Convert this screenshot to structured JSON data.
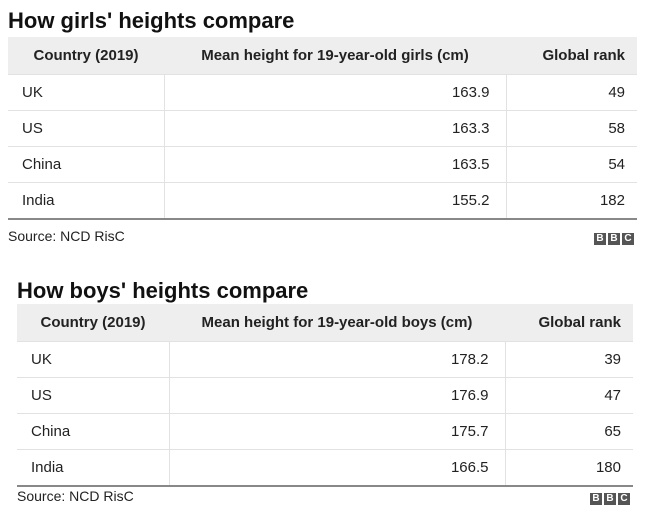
{
  "chart_data": [
    {
      "type": "table",
      "title": "How girls' heights compare",
      "columns": [
        "Country (2019)",
        "Mean height for 19-year-old girls (cm)",
        "Global rank"
      ],
      "rows": [
        [
          "UK",
          "163.9",
          "49"
        ],
        [
          "US",
          "163.3",
          "58"
        ],
        [
          "China",
          "163.5",
          "54"
        ],
        [
          "India",
          "155.2",
          "182"
        ]
      ],
      "source": "Source: NCD RisC",
      "logo": "BBC"
    },
    {
      "type": "table",
      "title": "How boys' heights compare",
      "columns": [
        "Country (2019)",
        "Mean height for 19-year-old boys (cm)",
        "Global rank"
      ],
      "rows": [
        [
          "UK",
          "178.2",
          "39"
        ],
        [
          "US",
          "176.9",
          "47"
        ],
        [
          "China",
          "175.7",
          "65"
        ],
        [
          "India",
          "166.5",
          "180"
        ]
      ],
      "source": "Source: NCD RisC",
      "logo": "BBC"
    }
  ]
}
